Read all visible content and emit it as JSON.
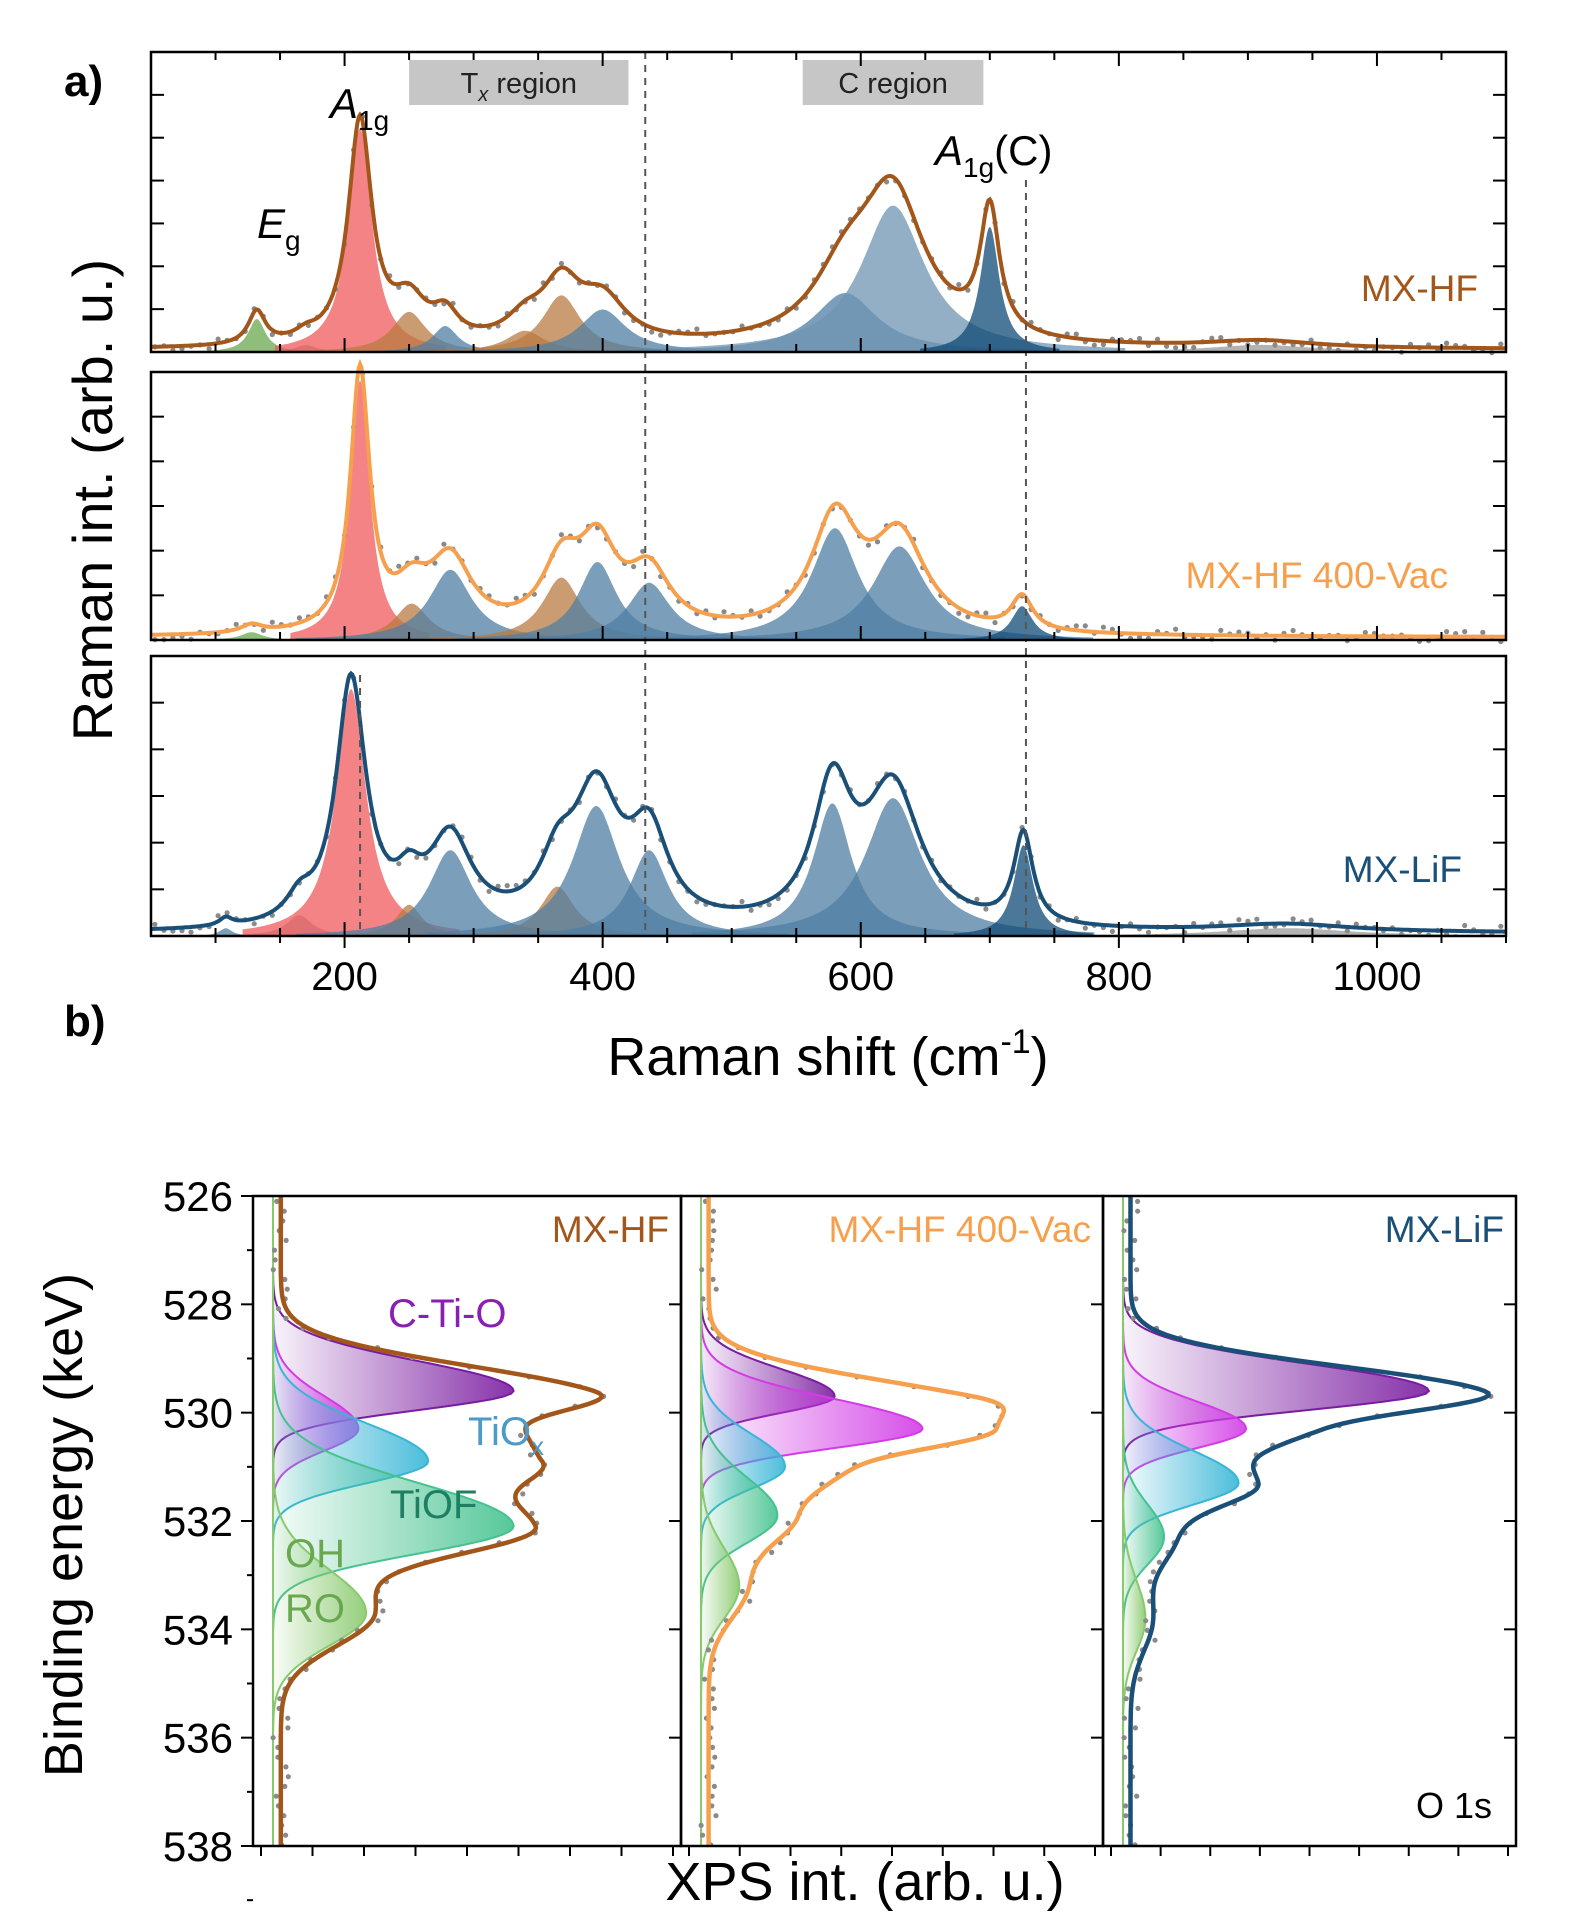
{
  "chart_data": [
    {
      "panel": "a)",
      "type": "line",
      "xlabel": "Raman shift (cm",
      "xlabel_sup": "-1",
      "xlabel_end": ")",
      "ylabel": "Raman int. (arb. u.)",
      "xlim": [
        50,
        1100
      ],
      "xticks": [
        "200",
        "400",
        "600",
        "800",
        "1000"
      ],
      "xtick_values": [
        200,
        400,
        600,
        800,
        1000
      ],
      "regions": [
        {
          "label": "T",
          "sub": "x",
          "rest": " region",
          "range": [
            250,
            420
          ]
        },
        {
          "label": "C region",
          "range": [
            555,
            695
          ]
        }
      ],
      "dashed_lines_x": [
        212,
        433,
        728
      ],
      "peak_labels": [
        {
          "base": "E",
          "sub": "g",
          "rest": ""
        },
        {
          "base": "A",
          "sub": "1g",
          "rest": ""
        },
        {
          "base": "A",
          "sub": "1g",
          "rest": "(C)"
        }
      ],
      "series": [
        {
          "name": "MX-HF",
          "color": "#a2561a",
          "peaks": [
            {
              "x": 132,
              "h": 0.14,
              "w": 8,
              "color": "#6aa84f"
            },
            {
              "x": 170,
              "h": 0.03,
              "w": 10,
              "color": "#999999"
            },
            {
              "x": 212,
              "h": 0.95,
              "w": 11,
              "color": "#f0595c"
            },
            {
              "x": 250,
              "h": 0.17,
              "w": 16,
              "color": "#b97a42"
            },
            {
              "x": 278,
              "h": 0.11,
              "w": 12,
              "color": "#4f7fa3"
            },
            {
              "x": 340,
              "h": 0.09,
              "w": 18,
              "color": "#b97a42"
            },
            {
              "x": 368,
              "h": 0.24,
              "w": 18,
              "color": "#b97a42"
            },
            {
              "x": 400,
              "h": 0.18,
              "w": 22,
              "color": "#4f7fa3"
            },
            {
              "x": 588,
              "h": 0.25,
              "w": 30,
              "color": "#4f7fa3"
            },
            {
              "x": 625,
              "h": 0.62,
              "w": 30,
              "color": "#6d94b3"
            },
            {
              "x": 700,
              "h": 0.53,
              "w": 9,
              "color": "#0f4a75"
            },
            {
              "x": 910,
              "h": 0.03,
              "w": 50,
              "color": "#999999"
            }
          ]
        },
        {
          "name": "MX-HF 400-Vac",
          "color": "#f6a04d",
          "peaks": [
            {
              "x": 128,
              "h": 0.03,
              "w": 10,
              "color": "#6aa84f"
            },
            {
              "x": 212,
              "h": 1.0,
              "w": 9,
              "color": "#f0595c"
            },
            {
              "x": 252,
              "h": 0.14,
              "w": 16,
              "color": "#b97a42"
            },
            {
              "x": 282,
              "h": 0.27,
              "w": 20,
              "color": "#4f7fa3"
            },
            {
              "x": 368,
              "h": 0.24,
              "w": 18,
              "color": "#b97a42"
            },
            {
              "x": 396,
              "h": 0.3,
              "w": 18,
              "color": "#4f7fa3"
            },
            {
              "x": 436,
              "h": 0.22,
              "w": 20,
              "color": "#4f7fa3"
            },
            {
              "x": 580,
              "h": 0.43,
              "w": 22,
              "color": "#4f7fa3"
            },
            {
              "x": 630,
              "h": 0.36,
              "w": 25,
              "color": "#4f7fa3"
            },
            {
              "x": 725,
              "h": 0.13,
              "w": 10,
              "color": "#0f4a75"
            }
          ]
        },
        {
          "name": "MX-LiF",
          "color": "#1a4f78",
          "peaks": [
            {
              "x": 108,
              "h": 0.03,
              "w": 6,
              "color": "#4f7fa3"
            },
            {
              "x": 165,
              "h": 0.08,
              "w": 12,
              "color": "#999999"
            },
            {
              "x": 205,
              "h": 0.95,
              "w": 14,
              "color": "#f0595c"
            },
            {
              "x": 250,
              "h": 0.12,
              "w": 12,
              "color": "#b97a42"
            },
            {
              "x": 282,
              "h": 0.33,
              "w": 20,
              "color": "#4f7fa3"
            },
            {
              "x": 365,
              "h": 0.19,
              "w": 16,
              "color": "#b97a42"
            },
            {
              "x": 395,
              "h": 0.5,
              "w": 22,
              "color": "#4f7fa3"
            },
            {
              "x": 436,
              "h": 0.33,
              "w": 18,
              "color": "#4f7fa3"
            },
            {
              "x": 578,
              "h": 0.51,
              "w": 18,
              "color": "#4f7fa3"
            },
            {
              "x": 625,
              "h": 0.53,
              "w": 26,
              "color": "#4f7fa3"
            },
            {
              "x": 726,
              "h": 0.35,
              "w": 9,
              "color": "#0f4a75"
            },
            {
              "x": 930,
              "h": 0.03,
              "w": 60,
              "color": "#999999"
            }
          ]
        }
      ]
    },
    {
      "panel": "b)",
      "type": "line",
      "xlabel": "XPS int. (arb. u.)",
      "ylabel": "Binding energy (keV)",
      "ylim": [
        526,
        538
      ],
      "yticks": [
        "526",
        "528",
        "530",
        "532",
        "534",
        "536",
        "538"
      ],
      "ytick_values": [
        526,
        528,
        530,
        532,
        534,
        536,
        538
      ],
      "core_level": "O 1s",
      "component_labels": [
        {
          "text": "C-Ti-O",
          "color": "#8a1fb5"
        },
        {
          "text": "TiO",
          "sub": "x",
          "color": "#4b9ac8"
        },
        {
          "text": "TiOF",
          "color": "#1f7f63"
        },
        {
          "text": "OH",
          "color": "#6aa84f"
        },
        {
          "text": "RO",
          "color": "#6aa84f"
        }
      ],
      "panels": [
        {
          "name": "MX-HF",
          "color": "#a2561a",
          "components": [
            {
              "name": "C-Ti-O",
              "e": 529.6,
              "amp": 0.62,
              "wl": 0.55,
              "wh": 0.35,
              "color": "#7a1ca0"
            },
            {
              "name": "C-Ti-O b",
              "e": 530.3,
              "amp": 0.22,
              "wl": 0.6,
              "wh": 0.4,
              "color": "#d23ce6"
            },
            {
              "name": "TiOx",
              "e": 530.9,
              "amp": 0.4,
              "wl": 0.7,
              "wh": 0.4,
              "color": "#38b6d6"
            },
            {
              "name": "TiOF",
              "e": 532.1,
              "amp": 0.62,
              "wl": 0.8,
              "wh": 0.5,
              "color": "#45c28f"
            },
            {
              "name": "OH RO",
              "e": 533.7,
              "amp": 0.24,
              "wl": 0.8,
              "wh": 0.6,
              "color": "#88c96d"
            }
          ]
        },
        {
          "name": "MX-HF 400-Vac",
          "color": "#f6a04d",
          "components": [
            {
              "name": "C-Ti-O",
              "e": 529.7,
              "amp": 0.35,
              "wl": 0.5,
              "wh": 0.3,
              "color": "#7a1ca0"
            },
            {
              "name": "C-Ti-O b",
              "e": 530.3,
              "amp": 0.58,
              "wl": 0.55,
              "wh": 0.35,
              "color": "#d23ce6"
            },
            {
              "name": "TiOx",
              "e": 531.0,
              "amp": 0.22,
              "wl": 0.6,
              "wh": 0.4,
              "color": "#38b6d6"
            },
            {
              "name": "TiOF",
              "e": 531.9,
              "amp": 0.2,
              "wl": 0.7,
              "wh": 0.5,
              "color": "#45c28f"
            },
            {
              "name": "OH RO",
              "e": 533.2,
              "amp": 0.1,
              "wl": 0.7,
              "wh": 0.6,
              "color": "#88c96d"
            }
          ]
        },
        {
          "name": "MX-LiF",
          "color": "#1a4f78",
          "components": [
            {
              "name": "C-Ti-O",
              "e": 529.6,
              "amp": 0.82,
              "wl": 0.5,
              "wh": 0.35,
              "color": "#7a1ca0"
            },
            {
              "name": "C-Ti-O b",
              "e": 530.3,
              "amp": 0.33,
              "wl": 0.5,
              "wh": 0.35,
              "color": "#d23ce6"
            },
            {
              "name": "TiOx",
              "e": 531.3,
              "amp": 0.31,
              "wl": 0.6,
              "wh": 0.4,
              "color": "#38b6d6"
            },
            {
              "name": "TiOF",
              "e": 532.3,
              "amp": 0.11,
              "wl": 0.6,
              "wh": 0.5,
              "color": "#45c28f"
            },
            {
              "name": "OH RO",
              "e": 533.8,
              "amp": 0.06,
              "wl": 0.7,
              "wh": 0.6,
              "color": "#88c96d"
            }
          ]
        }
      ]
    }
  ]
}
